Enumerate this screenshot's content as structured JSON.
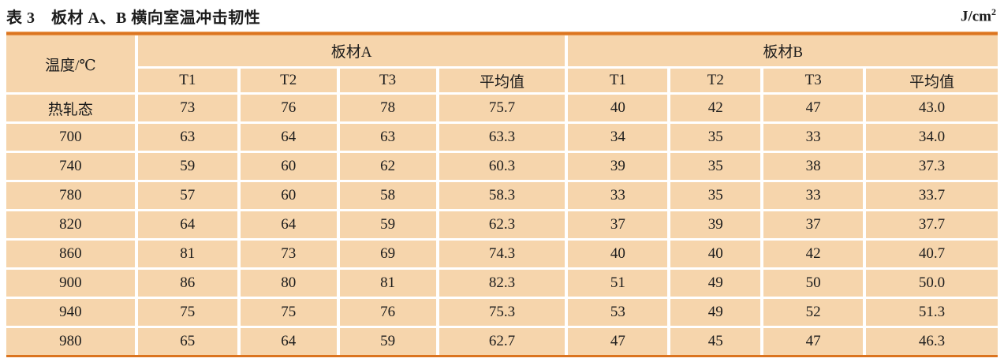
{
  "title": {
    "label": "表 3　板材 A、B 横向室温冲击韧性",
    "unit_base": "J/cm",
    "unit_sup": "2"
  },
  "colors": {
    "cell_bg": "#F6D5AC",
    "rule": "#DB741F"
  },
  "table": {
    "col0_header": "温度/℃",
    "groups": [
      {
        "label": "板材A"
      },
      {
        "label": "板材B"
      }
    ],
    "subheaders": [
      "T1",
      "T2",
      "T3",
      "平均值"
    ],
    "rows": [
      {
        "temp": "热轧态",
        "a": [
          "73",
          "76",
          "78",
          "75.7"
        ],
        "b": [
          "40",
          "42",
          "47",
          "43.0"
        ]
      },
      {
        "temp": "700",
        "a": [
          "63",
          "64",
          "63",
          "63.3"
        ],
        "b": [
          "34",
          "35",
          "33",
          "34.0"
        ]
      },
      {
        "temp": "740",
        "a": [
          "59",
          "60",
          "62",
          "60.3"
        ],
        "b": [
          "39",
          "35",
          "38",
          "37.3"
        ]
      },
      {
        "temp": "780",
        "a": [
          "57",
          "60",
          "58",
          "58.3"
        ],
        "b": [
          "33",
          "35",
          "33",
          "33.7"
        ]
      },
      {
        "temp": "820",
        "a": [
          "64",
          "64",
          "59",
          "62.3"
        ],
        "b": [
          "37",
          "39",
          "37",
          "37.7"
        ]
      },
      {
        "temp": "860",
        "a": [
          "81",
          "73",
          "69",
          "74.3"
        ],
        "b": [
          "40",
          "40",
          "42",
          "40.7"
        ]
      },
      {
        "temp": "900",
        "a": [
          "86",
          "80",
          "81",
          "82.3"
        ],
        "b": [
          "51",
          "49",
          "50",
          "50.0"
        ]
      },
      {
        "temp": "940",
        "a": [
          "75",
          "75",
          "76",
          "75.3"
        ],
        "b": [
          "53",
          "49",
          "52",
          "51.3"
        ]
      },
      {
        "temp": "980",
        "a": [
          "65",
          "64",
          "59",
          "62.7"
        ],
        "b": [
          "47",
          "45",
          "47",
          "46.3"
        ]
      }
    ]
  },
  "chart_data": {
    "type": "table",
    "title": "表 3　板材 A、B 横向室温冲击韧性 (J/cm²)",
    "categories": [
      "热轧态",
      "700",
      "740",
      "780",
      "820",
      "860",
      "900",
      "940",
      "980"
    ],
    "series": [
      {
        "name": "板材A T1",
        "values": [
          73,
          63,
          59,
          57,
          64,
          81,
          86,
          75,
          65
        ]
      },
      {
        "name": "板材A T2",
        "values": [
          76,
          64,
          60,
          60,
          64,
          73,
          80,
          75,
          64
        ]
      },
      {
        "name": "板材A T3",
        "values": [
          78,
          63,
          62,
          58,
          59,
          69,
          81,
          76,
          59
        ]
      },
      {
        "name": "板材A 平均值",
        "values": [
          75.7,
          63.3,
          60.3,
          58.3,
          62.3,
          74.3,
          82.3,
          75.3,
          62.7
        ]
      },
      {
        "name": "板材B T1",
        "values": [
          40,
          34,
          39,
          33,
          37,
          40,
          51,
          53,
          47
        ]
      },
      {
        "name": "板材B T2",
        "values": [
          42,
          35,
          35,
          35,
          39,
          40,
          49,
          49,
          45
        ]
      },
      {
        "name": "板材B T3",
        "values": [
          47,
          33,
          38,
          33,
          37,
          42,
          50,
          52,
          47
        ]
      },
      {
        "name": "板材B 平均值",
        "values": [
          43.0,
          34.0,
          37.3,
          33.7,
          37.7,
          40.7,
          50.0,
          51.3,
          46.3
        ]
      }
    ]
  }
}
